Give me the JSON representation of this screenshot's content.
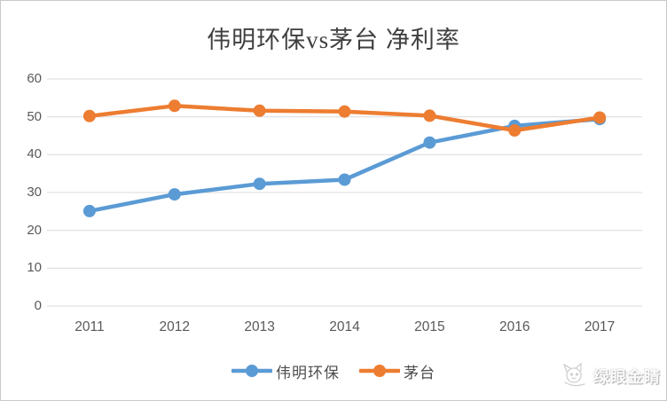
{
  "chart_data": {
    "type": "line",
    "title": "伟明环保vs茅台 净利率",
    "x": [
      "2011",
      "2012",
      "2013",
      "2014",
      "2015",
      "2016",
      "2017"
    ],
    "series": [
      {
        "name": "伟明环保",
        "color": "#5B9BD5",
        "values": [
          25.1,
          29.5,
          32.3,
          33.4,
          43.2,
          47.6,
          49.4
        ]
      },
      {
        "name": "茅台",
        "color": "#ED7D31",
        "values": [
          50.2,
          52.9,
          51.6,
          51.4,
          50.3,
          46.4,
          49.8
        ]
      }
    ],
    "ylim": [
      0,
      60
    ],
    "yticks": [
      0,
      10,
      20,
      30,
      40,
      50,
      60
    ],
    "xlabel": "",
    "ylabel": "",
    "grid": "horizontal",
    "grid_color": "#D9D9D9",
    "axis_label_color": "#595959",
    "title_color": "#3f3f3f",
    "legend_position": "bottom",
    "marker": "circle",
    "background": "#ffffff"
  },
  "watermark": {
    "text": "绿眼金睛",
    "icon": "cat-face-icon"
  }
}
